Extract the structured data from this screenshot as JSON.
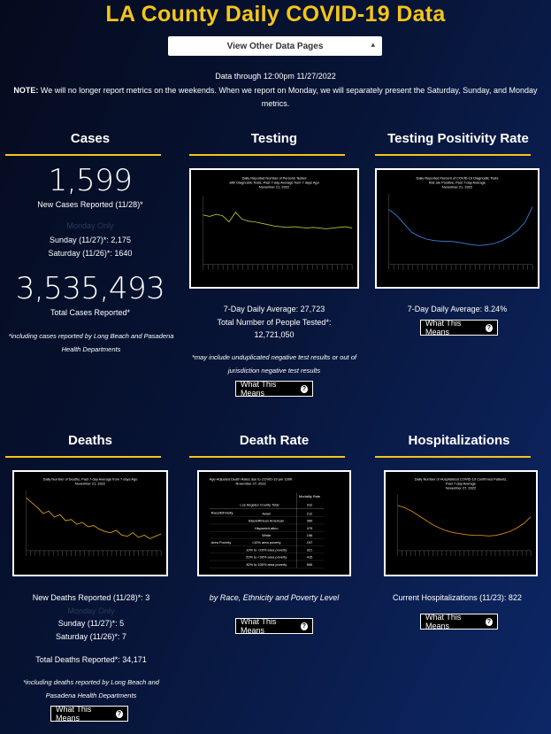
{
  "header": {
    "title": "LA County Daily COVID-19 Data",
    "select_label": "View Other Data Pages",
    "data_through": "Data through 12:00pm 11/27/2022",
    "note_label": "NOTE:",
    "note_text": " We will no longer report metrics on the weekends. When we report on Monday, we will separately present the Saturday, Sunday, and Monday metrics."
  },
  "cases": {
    "title": "Cases",
    "new_value": "1,599",
    "new_label": "New Cases Reported (11/28)*",
    "monday_only": "Monday Only",
    "sunday": "Sunday (11/27)*: 2,175",
    "saturday": "Saturday (11/26)*: 1640",
    "total_value": "3,535,493",
    "total_label": "Total Cases Reported*",
    "footnote": "*including cases reported by Long Beach and Pasadena Health Departments"
  },
  "testing": {
    "title": "Testing",
    "chart_title": "Daily Reported Number of Persons Tested with Diagnostic Tests, Past 7-day Average from 7 days Ago November 21, 2022",
    "avg": "7-Day Daily Average: 27,723",
    "total_label": "Total Number of People Tested*:",
    "total_value": "12,721,050",
    "footnote": "*may include unduplicated negative test results or out of jurisdiction negative test results",
    "button": "What This Means"
  },
  "positivity": {
    "title": "Testing Positivity Rate",
    "chart_title": "Daily Reported Percent of COVID-19 Diagnostic Tests that are Positive, Past 7-day Average November 21, 2022",
    "avg": "7-Day Daily Average: 8.24%",
    "button": "What This Means"
  },
  "deaths": {
    "title": "Deaths",
    "chart_title": "Daily Number of Deaths, Past 7-day Average from 7 days Ago November 21, 2022",
    "new": "New Deaths Reported (11/28)*: 3",
    "monday_only": "Monday Only",
    "sunday": "Sunday (11/27)*: 5",
    "saturday": "Saturday (11/26)*: 7",
    "total": "Total Deaths Reported*: 34,171",
    "footnote": "*including deaths reported by Long Beach and Pasadena Health Departments",
    "button": "What This Means"
  },
  "death_rate": {
    "title": "Death Rate",
    "table_title": "Age-Adjusted Death Rates due to COVID-19 per 100K November 27, 2022",
    "col_header": "Mortality Rate",
    "total_label": "Los Angeles County Total",
    "total_value": "312",
    "groups": [
      "Race/Ethnicity",
      "Area Poverty"
    ],
    "rows": [
      {
        "label": "Asian",
        "value": "212"
      },
      {
        "label": "Black/African American",
        "value": "350"
      },
      {
        "label": "Hispanic/Latino",
        "value": "479"
      },
      {
        "label": "White",
        "value": "196"
      },
      {
        "label": "<10% area poverty",
        "value": "197"
      },
      {
        "label": "10% to <20% area poverty",
        "value": "321"
      },
      {
        "label": "20% to <30% area poverty",
        "value": "415"
      },
      {
        "label": "30% to 100% area poverty",
        "value": "506"
      }
    ],
    "caption": "by Race, Ethnicity and Poverty Level",
    "button": "What This Means"
  },
  "hosp": {
    "title": "Hospitalizations",
    "chart_title": "Daily Number of Hospitalized COVID-19 Confirmed Patients, Past 7-day Average November 27, 2022",
    "current": "Current Hospitalizations (11/23): 822",
    "button": "What This Means"
  },
  "colors": {
    "accent": "#f5c518",
    "testing_line": "#b5c33a",
    "positivity_line": "#3f7fe0",
    "deaths_line": "#d5a21f",
    "hosp_line": "#e08a1f"
  },
  "icons": [
    "question-circle-icon",
    "chevron-updown-icon"
  ],
  "chart_data": [
    {
      "type": "line",
      "name": "testing",
      "title": "Daily Reported Number of Persons Tested with Diagnostic Tests, Past 7-day Average from 7 days Ago November 21, 2022",
      "values": [
        0.72,
        0.7,
        0.73,
        0.71,
        0.62,
        0.76,
        0.66,
        0.63,
        0.62,
        0.6,
        0.58,
        0.56,
        0.55,
        0.54,
        0.55,
        0.54,
        0.53,
        0.54,
        0.53,
        0.52,
        0.53,
        0.54,
        0.55,
        0.53
      ]
    },
    {
      "type": "line",
      "name": "positivity",
      "title": "Daily Reported Percent of COVID-19 Diagnostic Tests that are Positive, Past 7-day Average November 21, 2022",
      "values": [
        0.78,
        0.7,
        0.58,
        0.46,
        0.4,
        0.36,
        0.34,
        0.33,
        0.33,
        0.32,
        0.3,
        0.28,
        0.27,
        0.28,
        0.3,
        0.34,
        0.4,
        0.48,
        0.6,
        0.82
      ]
    },
    {
      "type": "line",
      "name": "deaths",
      "title": "Daily Number of Deaths, Past 7-day Average from 7 days Ago November 21, 2022",
      "values": [
        0.88,
        0.8,
        0.72,
        0.62,
        0.66,
        0.56,
        0.6,
        0.5,
        0.52,
        0.44,
        0.47,
        0.4,
        0.42,
        0.36,
        0.32,
        0.3,
        0.34,
        0.26,
        0.24,
        0.3,
        0.22,
        0.26,
        0.2,
        0.24,
        0.28
      ]
    },
    {
      "type": "line",
      "name": "hospitalizations",
      "title": "Daily Number of Hospitalized COVID-19 Confirmed Patients, Past 7-day Average November 27, 2022",
      "values": [
        0.8,
        0.76,
        0.7,
        0.62,
        0.54,
        0.46,
        0.4,
        0.35,
        0.32,
        0.3,
        0.28,
        0.27,
        0.27,
        0.26,
        0.27,
        0.3,
        0.34,
        0.4,
        0.48,
        0.6
      ]
    }
  ]
}
